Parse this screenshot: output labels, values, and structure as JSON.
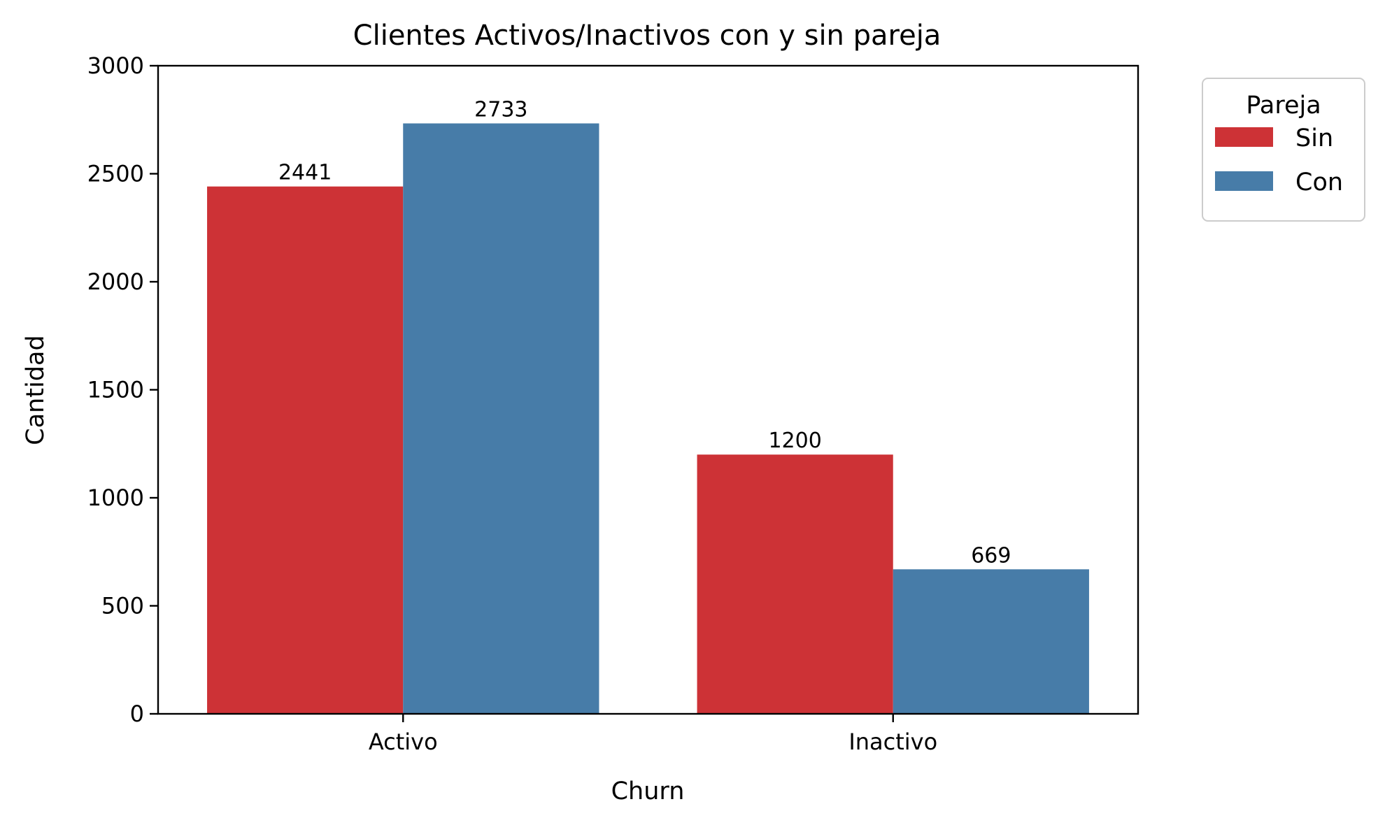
{
  "chart_data": {
    "type": "bar",
    "title": "Clientes Activos/Inactivos con y sin pareja",
    "xlabel": "Churn",
    "ylabel": "Cantidad",
    "categories": [
      "Activo",
      "Inactivo"
    ],
    "series": [
      {
        "name": "Sin",
        "values": [
          2441,
          1200
        ],
        "color": "#CD3236"
      },
      {
        "name": "Con",
        "values": [
          2733,
          669
        ],
        "color": "#477CA8"
      }
    ],
    "ylim": [
      0,
      3000
    ],
    "yticks": [
      0,
      500,
      1000,
      1500,
      2000,
      2500,
      3000
    ],
    "legend": {
      "title": "Pareja",
      "placement": "outside-top-right"
    },
    "grid": false
  }
}
